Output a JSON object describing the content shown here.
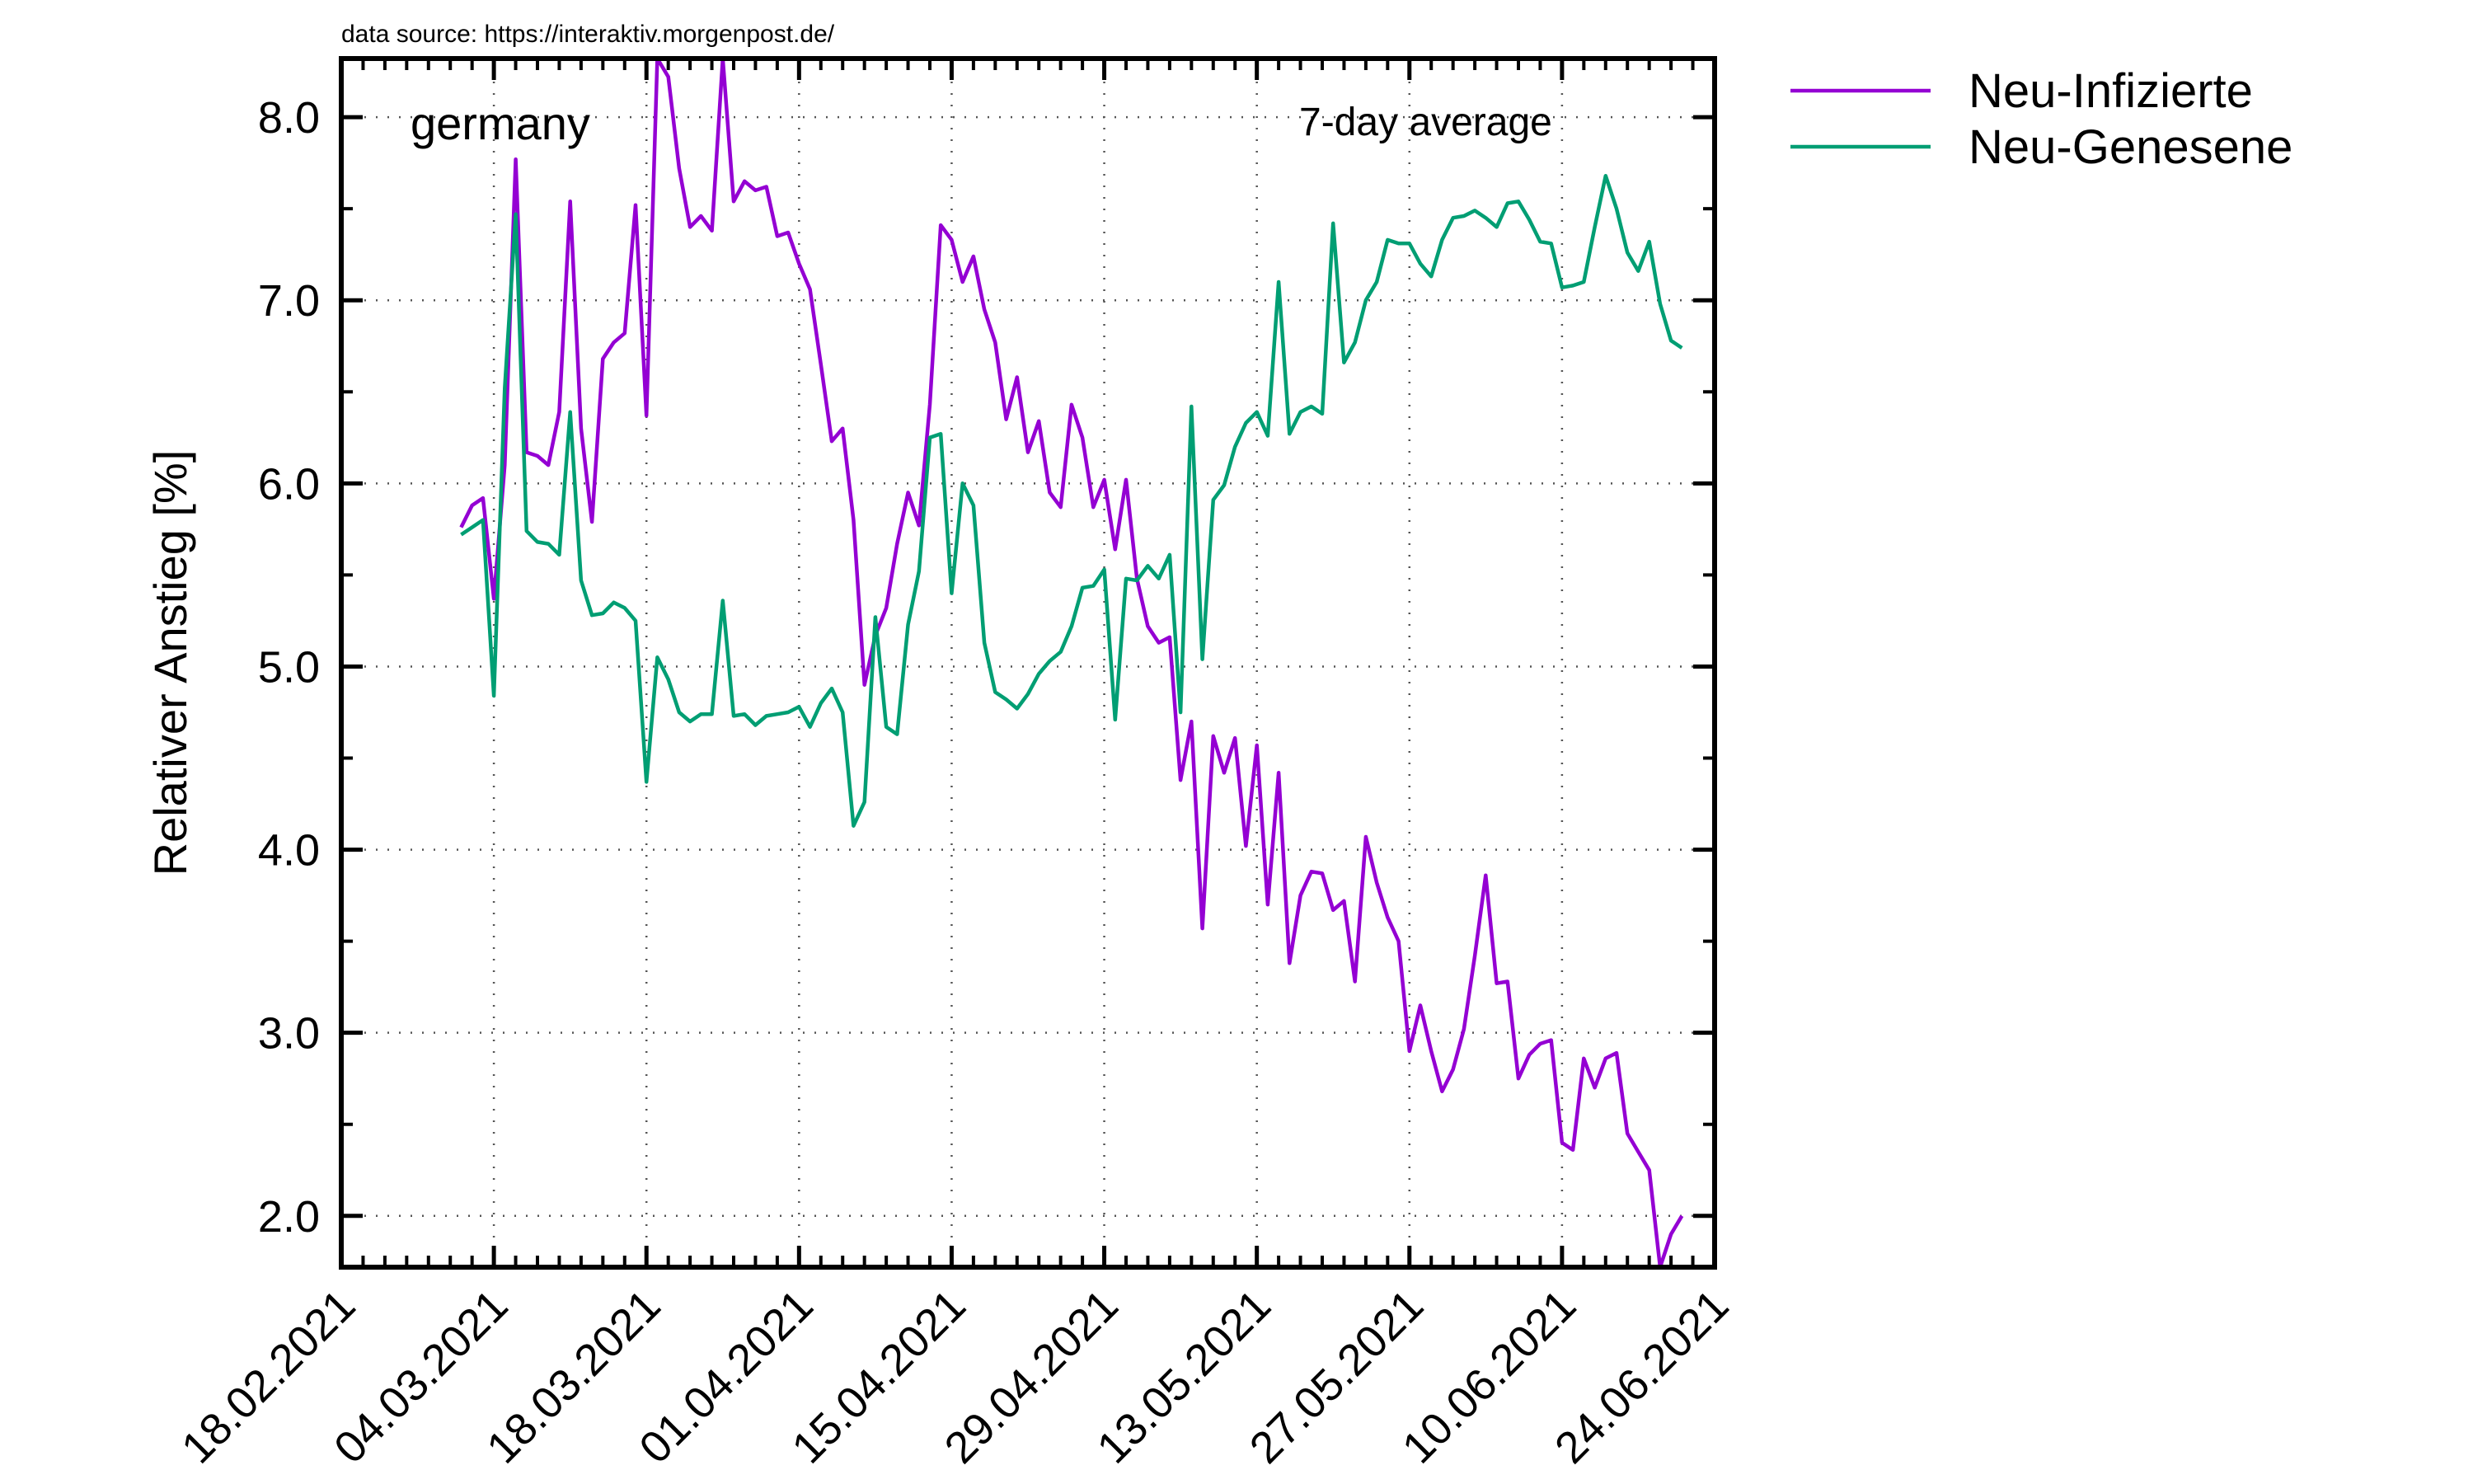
{
  "chart_data": {
    "type": "line",
    "source_note": "data source: https://interaktiv.morgenpost.de/",
    "region_label": "germany",
    "average_label": "7-day average",
    "ylabel": "Relativer Anstieg [%]",
    "xlabel": "",
    "x_start": "2021-02-18",
    "x_end": "2021-06-24",
    "ylim": [
      1.72,
      8.32
    ],
    "yticks": [
      2.0,
      3.0,
      4.0,
      5.0,
      6.0,
      7.0,
      8.0
    ],
    "ytick_labels": [
      "2.0",
      "3.0",
      "4.0",
      "5.0",
      "6.0",
      "7.0",
      "8.0"
    ],
    "xticks": [
      "2021-02-18",
      "2021-03-04",
      "2021-03-18",
      "2021-04-01",
      "2021-04-15",
      "2021-04-29",
      "2021-05-13",
      "2021-05-27",
      "2021-06-10",
      "2021-06-24"
    ],
    "xtick_labels": [
      "18.02.2021",
      "04.03.2021",
      "18.03.2021",
      "01.04.2021",
      "15.04.2021",
      "29.04.2021",
      "13.05.2021",
      "27.05.2021",
      "10.06.2021",
      "24.06.2021"
    ],
    "grid": true,
    "legend_position": "outside-top-right",
    "series": [
      {
        "name": "Neu-Infizierte",
        "color": "#9400d3",
        "points": [
          [
            "2021-03-01",
            5.76
          ],
          [
            "2021-03-02",
            5.88
          ],
          [
            "2021-03-03",
            5.92
          ],
          [
            "2021-03-04",
            5.37
          ],
          [
            "2021-03-05",
            6.1
          ],
          [
            "2021-03-06",
            7.77
          ],
          [
            "2021-03-07",
            6.17
          ],
          [
            "2021-03-08",
            6.15
          ],
          [
            "2021-03-09",
            6.1
          ],
          [
            "2021-03-10",
            6.39
          ],
          [
            "2021-03-11",
            7.54
          ],
          [
            "2021-03-12",
            6.3
          ],
          [
            "2021-03-13",
            5.79
          ],
          [
            "2021-03-14",
            6.68
          ],
          [
            "2021-03-15",
            6.77
          ],
          [
            "2021-03-16",
            6.82
          ],
          [
            "2021-03-17",
            7.52
          ],
          [
            "2021-03-18",
            6.37
          ],
          [
            "2021-03-19",
            8.32
          ],
          [
            "2021-03-20",
            8.22
          ],
          [
            "2021-03-21",
            7.72
          ],
          [
            "2021-03-22",
            7.4
          ],
          [
            "2021-03-23",
            7.46
          ],
          [
            "2021-03-24",
            7.38
          ],
          [
            "2021-03-25",
            8.32
          ],
          [
            "2021-03-26",
            7.54
          ],
          [
            "2021-03-27",
            7.65
          ],
          [
            "2021-03-28",
            7.6
          ],
          [
            "2021-03-29",
            7.62
          ],
          [
            "2021-03-30",
            7.35
          ],
          [
            "2021-03-31",
            7.37
          ],
          [
            "2021-04-01",
            7.2
          ],
          [
            "2021-04-02",
            7.06
          ],
          [
            "2021-04-03",
            6.65
          ],
          [
            "2021-04-04",
            6.23
          ],
          [
            "2021-04-05",
            6.3
          ],
          [
            "2021-04-06",
            5.8
          ],
          [
            "2021-04-07",
            4.9
          ],
          [
            "2021-04-08",
            5.17
          ],
          [
            "2021-04-09",
            5.32
          ],
          [
            "2021-04-10",
            5.67
          ],
          [
            "2021-04-11",
            5.95
          ],
          [
            "2021-04-12",
            5.77
          ],
          [
            "2021-04-13",
            6.43
          ],
          [
            "2021-04-14",
            7.41
          ],
          [
            "2021-04-15",
            7.33
          ],
          [
            "2021-04-16",
            7.1
          ],
          [
            "2021-04-17",
            7.24
          ],
          [
            "2021-04-18",
            6.95
          ],
          [
            "2021-04-19",
            6.77
          ],
          [
            "2021-04-20",
            6.35
          ],
          [
            "2021-04-21",
            6.58
          ],
          [
            "2021-04-22",
            6.17
          ],
          [
            "2021-04-23",
            6.34
          ],
          [
            "2021-04-24",
            5.95
          ],
          [
            "2021-04-25",
            5.87
          ],
          [
            "2021-04-26",
            6.43
          ],
          [
            "2021-04-27",
            6.25
          ],
          [
            "2021-04-28",
            5.87
          ],
          [
            "2021-04-29",
            6.02
          ],
          [
            "2021-04-30",
            5.64
          ],
          [
            "2021-05-01",
            6.02
          ],
          [
            "2021-05-02",
            5.48
          ],
          [
            "2021-05-03",
            5.22
          ],
          [
            "2021-05-04",
            5.13
          ],
          [
            "2021-05-05",
            5.16
          ],
          [
            "2021-05-06",
            4.38
          ],
          [
            "2021-05-07",
            4.7
          ],
          [
            "2021-05-08",
            3.57
          ],
          [
            "2021-05-09",
            4.62
          ],
          [
            "2021-05-10",
            4.42
          ],
          [
            "2021-05-11",
            4.61
          ],
          [
            "2021-05-12",
            4.02
          ],
          [
            "2021-05-13",
            4.57
          ],
          [
            "2021-05-14",
            3.7
          ],
          [
            "2021-05-15",
            4.42
          ],
          [
            "2021-05-16",
            3.38
          ],
          [
            "2021-05-17",
            3.75
          ],
          [
            "2021-05-18",
            3.88
          ],
          [
            "2021-05-19",
            3.87
          ],
          [
            "2021-05-20",
            3.67
          ],
          [
            "2021-05-21",
            3.72
          ],
          [
            "2021-05-22",
            3.28
          ],
          [
            "2021-05-23",
            4.07
          ],
          [
            "2021-05-24",
            3.82
          ],
          [
            "2021-05-25",
            3.63
          ],
          [
            "2021-05-26",
            3.5
          ],
          [
            "2021-05-27",
            2.9
          ],
          [
            "2021-05-28",
            3.15
          ],
          [
            "2021-05-29",
            2.9
          ],
          [
            "2021-05-30",
            2.68
          ],
          [
            "2021-05-31",
            2.8
          ],
          [
            "2021-06-01",
            3.02
          ],
          [
            "2021-06-02",
            3.42
          ],
          [
            "2021-06-03",
            3.86
          ],
          [
            "2021-06-04",
            3.27
          ],
          [
            "2021-06-05",
            3.28
          ],
          [
            "2021-06-06",
            2.75
          ],
          [
            "2021-06-07",
            2.88
          ],
          [
            "2021-06-08",
            2.94
          ],
          [
            "2021-06-09",
            2.96
          ],
          [
            "2021-06-10",
            2.4
          ],
          [
            "2021-06-11",
            2.36
          ],
          [
            "2021-06-12",
            2.86
          ],
          [
            "2021-06-13",
            2.7
          ],
          [
            "2021-06-14",
            2.86
          ],
          [
            "2021-06-15",
            2.89
          ],
          [
            "2021-06-16",
            2.45
          ],
          [
            "2021-06-17",
            2.35
          ],
          [
            "2021-06-18",
            2.25
          ],
          [
            "2021-06-19",
            1.72
          ],
          [
            "2021-06-20",
            1.9
          ],
          [
            "2021-06-21",
            2.0
          ]
        ]
      },
      {
        "name": "Neu-Genesene",
        "color": "#009e73",
        "points": [
          [
            "2021-03-01",
            5.72
          ],
          [
            "2021-03-02",
            5.76
          ],
          [
            "2021-03-03",
            5.8
          ],
          [
            "2021-03-04",
            4.84
          ],
          [
            "2021-03-05",
            6.52
          ],
          [
            "2021-03-06",
            7.47
          ],
          [
            "2021-03-07",
            5.74
          ],
          [
            "2021-03-08",
            5.68
          ],
          [
            "2021-03-09",
            5.67
          ],
          [
            "2021-03-10",
            5.61
          ],
          [
            "2021-03-11",
            6.39
          ],
          [
            "2021-03-12",
            5.47
          ],
          [
            "2021-03-13",
            5.28
          ],
          [
            "2021-03-14",
            5.29
          ],
          [
            "2021-03-15",
            5.35
          ],
          [
            "2021-03-16",
            5.32
          ],
          [
            "2021-03-17",
            5.25
          ],
          [
            "2021-03-18",
            4.37
          ],
          [
            "2021-03-19",
            5.05
          ],
          [
            "2021-03-20",
            4.93
          ],
          [
            "2021-03-21",
            4.75
          ],
          [
            "2021-03-22",
            4.7
          ],
          [
            "2021-03-23",
            4.74
          ],
          [
            "2021-03-24",
            4.74
          ],
          [
            "2021-03-25",
            5.36
          ],
          [
            "2021-03-26",
            4.73
          ],
          [
            "2021-03-27",
            4.74
          ],
          [
            "2021-03-28",
            4.68
          ],
          [
            "2021-03-29",
            4.73
          ],
          [
            "2021-03-30",
            4.74
          ],
          [
            "2021-03-31",
            4.75
          ],
          [
            "2021-04-01",
            4.78
          ],
          [
            "2021-04-02",
            4.67
          ],
          [
            "2021-04-03",
            4.8
          ],
          [
            "2021-04-04",
            4.88
          ],
          [
            "2021-04-05",
            4.75
          ],
          [
            "2021-04-06",
            4.13
          ],
          [
            "2021-04-07",
            4.26
          ],
          [
            "2021-04-08",
            5.27
          ],
          [
            "2021-04-09",
            4.67
          ],
          [
            "2021-04-10",
            4.63
          ],
          [
            "2021-04-11",
            5.23
          ],
          [
            "2021-04-12",
            5.52
          ],
          [
            "2021-04-13",
            6.25
          ],
          [
            "2021-04-14",
            6.27
          ],
          [
            "2021-04-15",
            5.4
          ],
          [
            "2021-04-16",
            6.0
          ],
          [
            "2021-04-17",
            5.88
          ],
          [
            "2021-04-18",
            5.13
          ],
          [
            "2021-04-19",
            4.86
          ],
          [
            "2021-04-20",
            4.82
          ],
          [
            "2021-04-21",
            4.77
          ],
          [
            "2021-04-22",
            4.85
          ],
          [
            "2021-04-23",
            4.96
          ],
          [
            "2021-04-24",
            5.03
          ],
          [
            "2021-04-25",
            5.08
          ],
          [
            "2021-04-26",
            5.22
          ],
          [
            "2021-04-27",
            5.43
          ],
          [
            "2021-04-28",
            5.44
          ],
          [
            "2021-04-29",
            5.53
          ],
          [
            "2021-04-30",
            4.71
          ],
          [
            "2021-05-01",
            5.48
          ],
          [
            "2021-05-02",
            5.47
          ],
          [
            "2021-05-03",
            5.55
          ],
          [
            "2021-05-04",
            5.48
          ],
          [
            "2021-05-05",
            5.61
          ],
          [
            "2021-05-06",
            4.75
          ],
          [
            "2021-05-07",
            6.42
          ],
          [
            "2021-05-08",
            5.04
          ],
          [
            "2021-05-09",
            5.91
          ],
          [
            "2021-05-10",
            5.99
          ],
          [
            "2021-05-11",
            6.2
          ],
          [
            "2021-05-12",
            6.33
          ],
          [
            "2021-05-13",
            6.39
          ],
          [
            "2021-05-14",
            6.26
          ],
          [
            "2021-05-15",
            7.1
          ],
          [
            "2021-05-16",
            6.27
          ],
          [
            "2021-05-17",
            6.39
          ],
          [
            "2021-05-18",
            6.42
          ],
          [
            "2021-05-19",
            6.38
          ],
          [
            "2021-05-20",
            7.42
          ],
          [
            "2021-05-21",
            6.66
          ],
          [
            "2021-05-22",
            6.77
          ],
          [
            "2021-05-23",
            7.0
          ],
          [
            "2021-05-24",
            7.1
          ],
          [
            "2021-05-25",
            7.33
          ],
          [
            "2021-05-26",
            7.31
          ],
          [
            "2021-05-27",
            7.31
          ],
          [
            "2021-05-28",
            7.2
          ],
          [
            "2021-05-29",
            7.13
          ],
          [
            "2021-05-30",
            7.33
          ],
          [
            "2021-05-31",
            7.45
          ],
          [
            "2021-06-01",
            7.46
          ],
          [
            "2021-06-02",
            7.49
          ],
          [
            "2021-06-03",
            7.45
          ],
          [
            "2021-06-04",
            7.4
          ],
          [
            "2021-06-05",
            7.53
          ],
          [
            "2021-06-06",
            7.54
          ],
          [
            "2021-06-07",
            7.44
          ],
          [
            "2021-06-08",
            7.32
          ],
          [
            "2021-06-09",
            7.31
          ],
          [
            "2021-06-10",
            7.07
          ],
          [
            "2021-06-11",
            7.08
          ],
          [
            "2021-06-12",
            7.1
          ],
          [
            "2021-06-13",
            7.4
          ],
          [
            "2021-06-14",
            7.68
          ],
          [
            "2021-06-15",
            7.5
          ],
          [
            "2021-06-16",
            7.26
          ],
          [
            "2021-06-17",
            7.16
          ],
          [
            "2021-06-18",
            7.32
          ],
          [
            "2021-06-19",
            6.98
          ],
          [
            "2021-06-20",
            6.78
          ],
          [
            "2021-06-21",
            6.74
          ]
        ]
      }
    ]
  }
}
